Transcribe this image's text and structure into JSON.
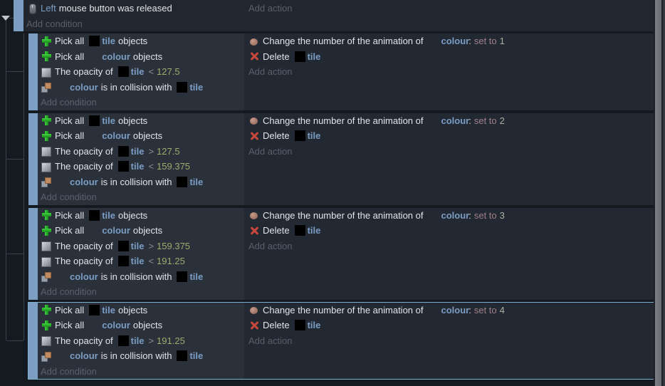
{
  "colors": {
    "accent_bar": "#7b9ec2",
    "object_text": "#7b9dc4",
    "number_text": "#a2a96d",
    "set_to_text": "#a08089",
    "selection_border": "#7eb1cd",
    "condition_bg": "#2a313b",
    "action_bg": "#232932"
  },
  "placeholders": {
    "add_condition": "Add condition",
    "add_action": "Add action"
  },
  "root_event": {
    "icon": "mouse-icon",
    "param": "Left",
    "text": "mouse button was released"
  },
  "blocks": [
    {
      "selected": false,
      "conditions": [
        {
          "icon": "pick-all-icon",
          "parts": [
            [
              "text",
              "Pick all"
            ],
            [
              "thumb",
              "black"
            ],
            [
              "object",
              "tile"
            ],
            [
              "text",
              "objects"
            ]
          ]
        },
        {
          "icon": "pick-all-icon",
          "parts": [
            [
              "text",
              "Pick all"
            ],
            [
              "thumb",
              "none"
            ],
            [
              "object",
              "colour"
            ],
            [
              "text",
              "objects"
            ]
          ]
        },
        {
          "icon": "opacity-icon",
          "parts": [
            [
              "text",
              "The opacity of"
            ],
            [
              "thumb",
              "black"
            ],
            [
              "object",
              "tile"
            ],
            [
              "op",
              "<"
            ],
            [
              "num",
              "127.5"
            ]
          ]
        },
        {
          "icon": "collision-icon",
          "parts": [
            [
              "thumb",
              "none"
            ],
            [
              "object",
              "colour"
            ],
            [
              "text",
              "is in collision with"
            ],
            [
              "thumb",
              "black"
            ],
            [
              "object",
              "tile"
            ]
          ]
        }
      ],
      "actions": [
        {
          "icon": "animation-icon",
          "parts": [
            [
              "text",
              "Change the number of the animation of"
            ],
            [
              "thumb",
              "none"
            ],
            [
              "object",
              "colour"
            ],
            [
              "colon",
              ":"
            ],
            [
              "setto",
              "set to"
            ],
            [
              "val",
              "1"
            ]
          ]
        },
        {
          "icon": "delete-icon",
          "parts": [
            [
              "text",
              "Delete"
            ],
            [
              "thumb",
              "black"
            ],
            [
              "object",
              "tile"
            ]
          ]
        }
      ]
    },
    {
      "selected": false,
      "conditions": [
        {
          "icon": "pick-all-icon",
          "parts": [
            [
              "text",
              "Pick all"
            ],
            [
              "thumb",
              "black"
            ],
            [
              "object",
              "tile"
            ],
            [
              "text",
              "objects"
            ]
          ]
        },
        {
          "icon": "pick-all-icon",
          "parts": [
            [
              "text",
              "Pick all"
            ],
            [
              "thumb",
              "none"
            ],
            [
              "object",
              "colour"
            ],
            [
              "text",
              "objects"
            ]
          ]
        },
        {
          "icon": "opacity-icon",
          "parts": [
            [
              "text",
              "The opacity of"
            ],
            [
              "thumb",
              "black"
            ],
            [
              "object",
              "tile"
            ],
            [
              "op",
              ">"
            ],
            [
              "num",
              "127.5"
            ]
          ]
        },
        {
          "icon": "opacity-icon",
          "parts": [
            [
              "text",
              "The opacity of"
            ],
            [
              "thumb",
              "black"
            ],
            [
              "object",
              "tile"
            ],
            [
              "op",
              "<"
            ],
            [
              "num",
              "159.375"
            ]
          ]
        },
        {
          "icon": "collision-icon",
          "parts": [
            [
              "thumb",
              "none"
            ],
            [
              "object",
              "colour"
            ],
            [
              "text",
              "is in collision with"
            ],
            [
              "thumb",
              "black"
            ],
            [
              "object",
              "tile"
            ]
          ]
        }
      ],
      "actions": [
        {
          "icon": "animation-icon",
          "parts": [
            [
              "text",
              "Change the number of the animation of"
            ],
            [
              "thumb",
              "none"
            ],
            [
              "object",
              "colour"
            ],
            [
              "colon",
              ":"
            ],
            [
              "setto",
              "set to"
            ],
            [
              "val",
              "2"
            ]
          ]
        },
        {
          "icon": "delete-icon",
          "parts": [
            [
              "text",
              "Delete"
            ],
            [
              "thumb",
              "black"
            ],
            [
              "object",
              "tile"
            ]
          ]
        }
      ]
    },
    {
      "selected": false,
      "conditions": [
        {
          "icon": "pick-all-icon",
          "parts": [
            [
              "text",
              "Pick all"
            ],
            [
              "thumb",
              "black"
            ],
            [
              "object",
              "tile"
            ],
            [
              "text",
              "objects"
            ]
          ]
        },
        {
          "icon": "pick-all-icon",
          "parts": [
            [
              "text",
              "Pick all"
            ],
            [
              "thumb",
              "none"
            ],
            [
              "object",
              "colour"
            ],
            [
              "text",
              "objects"
            ]
          ]
        },
        {
          "icon": "opacity-icon",
          "parts": [
            [
              "text",
              "The opacity of"
            ],
            [
              "thumb",
              "black"
            ],
            [
              "object",
              "tile"
            ],
            [
              "op",
              ">"
            ],
            [
              "num",
              "159.375"
            ]
          ]
        },
        {
          "icon": "opacity-icon",
          "parts": [
            [
              "text",
              "The opacity of"
            ],
            [
              "thumb",
              "black"
            ],
            [
              "object",
              "tile"
            ],
            [
              "op",
              "<"
            ],
            [
              "num",
              "191.25"
            ]
          ]
        },
        {
          "icon": "collision-icon",
          "parts": [
            [
              "thumb",
              "none"
            ],
            [
              "object",
              "colour"
            ],
            [
              "text",
              "is in collision with"
            ],
            [
              "thumb",
              "black"
            ],
            [
              "object",
              "tile"
            ]
          ]
        }
      ],
      "actions": [
        {
          "icon": "animation-icon",
          "parts": [
            [
              "text",
              "Change the number of the animation of"
            ],
            [
              "thumb",
              "none"
            ],
            [
              "object",
              "colour"
            ],
            [
              "colon",
              ":"
            ],
            [
              "setto",
              "set to"
            ],
            [
              "val",
              "3"
            ]
          ]
        },
        {
          "icon": "delete-icon",
          "parts": [
            [
              "text",
              "Delete"
            ],
            [
              "thumb",
              "black"
            ],
            [
              "object",
              "tile"
            ]
          ]
        }
      ]
    },
    {
      "selected": true,
      "conditions": [
        {
          "icon": "pick-all-icon",
          "parts": [
            [
              "text",
              "Pick all"
            ],
            [
              "thumb",
              "black"
            ],
            [
              "object",
              "tile"
            ],
            [
              "text",
              "objects"
            ]
          ]
        },
        {
          "icon": "pick-all-icon",
          "parts": [
            [
              "text",
              "Pick all"
            ],
            [
              "thumb",
              "none"
            ],
            [
              "object",
              "colour"
            ],
            [
              "text",
              "objects"
            ]
          ]
        },
        {
          "icon": "opacity-icon",
          "parts": [
            [
              "text",
              "The opacity of"
            ],
            [
              "thumb",
              "black"
            ],
            [
              "object",
              "tile"
            ],
            [
              "op",
              ">"
            ],
            [
              "num",
              "191.25"
            ]
          ]
        },
        {
          "icon": "collision-icon",
          "parts": [
            [
              "thumb",
              "none"
            ],
            [
              "object",
              "colour"
            ],
            [
              "text",
              "is in collision with"
            ],
            [
              "thumb",
              "black"
            ],
            [
              "object",
              "tile"
            ]
          ]
        }
      ],
      "actions": [
        {
          "icon": "animation-icon",
          "parts": [
            [
              "text",
              "Change the number of the animation of"
            ],
            [
              "thumb",
              "none"
            ],
            [
              "object",
              "colour"
            ],
            [
              "colon",
              ":"
            ],
            [
              "setto",
              "set to"
            ],
            [
              "val",
              "4"
            ]
          ]
        },
        {
          "icon": "delete-icon",
          "parts": [
            [
              "text",
              "Delete"
            ],
            [
              "thumb",
              "black"
            ],
            [
              "object",
              "tile"
            ]
          ]
        }
      ]
    }
  ]
}
